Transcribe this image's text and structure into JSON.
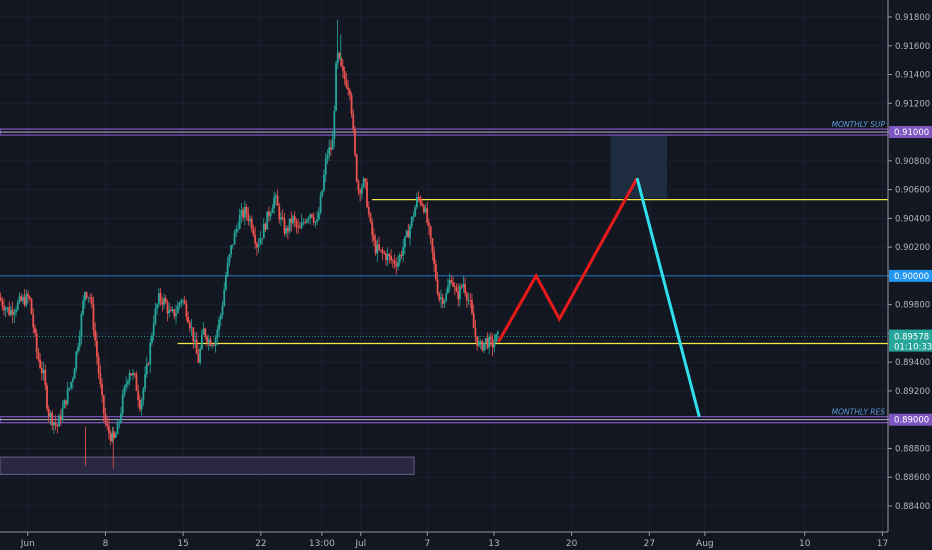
{
  "chart_data": {
    "type": "candlestick",
    "symbol_context": "price chart with drawn support/resistance levels and projected path",
    "x_ticks": [
      {
        "label": "Jun",
        "day": 0
      },
      {
        "label": "8",
        "day": 7
      },
      {
        "label": "15",
        "day": 14
      },
      {
        "label": "22",
        "day": 21
      },
      {
        "label": "13:00",
        "day": 26.5
      },
      {
        "label": "Jul",
        "day": 30
      },
      {
        "label": "7",
        "day": 36
      },
      {
        "label": "13",
        "day": 42
      },
      {
        "label": "20",
        "day": 49
      },
      {
        "label": "27",
        "day": 56
      },
      {
        "label": "Aug",
        "day": 61
      },
      {
        "label": "10",
        "day": 70
      },
      {
        "label": "17",
        "day": 77
      }
    ],
    "y_ticks": [
      "0.91800",
      "0.91600",
      "0.91400",
      "0.91200",
      "0.91000",
      "0.90800",
      "0.90600",
      "0.90400",
      "0.90200",
      "0.90000",
      "0.89800",
      "0.89600",
      "0.89400",
      "0.89200",
      "0.89000",
      "0.88800",
      "0.88600",
      "0.88400"
    ],
    "ylim": [
      0.883,
      0.919
    ],
    "xlim_days": [
      -2.5,
      77.5
    ],
    "levels": [
      {
        "name": "MONTHLY SUP",
        "price": 0.91,
        "label": "0.91000",
        "color": "#7e57c2"
      },
      {
        "name": "MONTHLY RES",
        "price": 0.89,
        "label": "0.89000",
        "color": "#7e57c2"
      },
      {
        "name": "",
        "price": 0.9,
        "label": "0.90000",
        "color": "#2196f3"
      }
    ],
    "yellow_lines": [
      {
        "price": 0.9053,
        "from_day": 31,
        "to_day": 77.5
      },
      {
        "price": 0.8953,
        "from_day": 13.5,
        "to_day": 77.5
      }
    ],
    "current_price": {
      "label": "0.89578",
      "countdown": "01:10:33",
      "price": 0.89578,
      "color": "#26a69a"
    },
    "zones": [
      {
        "from_day": 52.5,
        "to_day": 57.6,
        "top": 0.9098,
        "bottom": 0.9054,
        "color": "#1e2c40"
      },
      {
        "from_day": -2.5,
        "to_day": 34.8,
        "top": 0.8874,
        "bottom": 0.8862,
        "color": "#2a2740",
        "stroke": "#6a5f8a"
      }
    ],
    "projection_red": [
      [
        42.4,
        0.8954
      ],
      [
        45.8,
        0.9
      ],
      [
        47.9,
        0.897
      ],
      [
        54.9,
        0.9068
      ]
    ],
    "projection_cyan": [
      [
        54.9,
        0.9068
      ],
      [
        60.5,
        0.8902
      ]
    ],
    "candle_anchors": [
      [
        -2.5,
        0.8985
      ],
      [
        -1.5,
        0.8975
      ],
      [
        -0.5,
        0.8982
      ],
      [
        0.3,
        0.8985
      ],
      [
        1.0,
        0.8945
      ],
      [
        1.6,
        0.893
      ],
      [
        2.0,
        0.8905
      ],
      [
        2.8,
        0.8895
      ],
      [
        3.5,
        0.8912
      ],
      [
        4.2,
        0.893
      ],
      [
        4.8,
        0.896
      ],
      [
        5.3,
        0.899
      ],
      [
        5.8,
        0.8985
      ],
      [
        6.3,
        0.895
      ],
      [
        6.8,
        0.8915
      ],
      [
        7.2,
        0.8895
      ],
      [
        7.9,
        0.8885
      ],
      [
        8.3,
        0.8895
      ],
      [
        8.8,
        0.8918
      ],
      [
        9.3,
        0.8935
      ],
      [
        9.8,
        0.8928
      ],
      [
        10.3,
        0.891
      ],
      [
        11.0,
        0.894
      ],
      [
        11.5,
        0.897
      ],
      [
        12.0,
        0.8985
      ],
      [
        12.5,
        0.8982
      ],
      [
        13.0,
        0.8972
      ],
      [
        13.5,
        0.8975
      ],
      [
        14.0,
        0.8985
      ],
      [
        14.5,
        0.8975
      ],
      [
        15.0,
        0.896
      ],
      [
        15.5,
        0.894
      ],
      [
        16.0,
        0.8962
      ],
      [
        16.5,
        0.8955
      ],
      [
        17.0,
        0.8955
      ],
      [
        17.6,
        0.8975
      ],
      [
        18.0,
        0.9
      ],
      [
        18.5,
        0.902
      ],
      [
        19.2,
        0.904
      ],
      [
        19.8,
        0.9045
      ],
      [
        20.4,
        0.9035
      ],
      [
        20.8,
        0.9022
      ],
      [
        21.3,
        0.903
      ],
      [
        21.8,
        0.9042
      ],
      [
        22.4,
        0.9055
      ],
      [
        22.9,
        0.904
      ],
      [
        23.4,
        0.903
      ],
      [
        24.0,
        0.904
      ],
      [
        24.6,
        0.903
      ],
      [
        25.1,
        0.904
      ],
      [
        25.7,
        0.9045
      ],
      [
        26.2,
        0.9035
      ],
      [
        26.7,
        0.906
      ],
      [
        27.1,
        0.9085
      ],
      [
        27.6,
        0.909
      ],
      [
        28.0,
        0.9155
      ],
      [
        28.5,
        0.914
      ],
      [
        29.2,
        0.913
      ],
      [
        29.6,
        0.9085
      ],
      [
        29.9,
        0.906
      ],
      [
        30.5,
        0.9065
      ],
      [
        31.0,
        0.9035
      ],
      [
        31.4,
        0.902
      ],
      [
        31.9,
        0.9016
      ],
      [
        32.5,
        0.9014
      ],
      [
        33.0,
        0.901
      ],
      [
        33.5,
        0.901
      ],
      [
        34.2,
        0.9025
      ],
      [
        34.8,
        0.904
      ],
      [
        35.3,
        0.9055
      ],
      [
        35.8,
        0.905
      ],
      [
        36.2,
        0.9035
      ],
      [
        36.7,
        0.901
      ],
      [
        37.2,
        0.8985
      ],
      [
        37.8,
        0.8985
      ],
      [
        38.3,
        0.9
      ],
      [
        38.8,
        0.8985
      ],
      [
        39.4,
        0.8995
      ],
      [
        40.0,
        0.898
      ],
      [
        40.4,
        0.896
      ],
      [
        40.9,
        0.895
      ],
      [
        41.4,
        0.8955
      ],
      [
        42.0,
        0.8952
      ],
      [
        42.4,
        0.8957
      ]
    ]
  }
}
